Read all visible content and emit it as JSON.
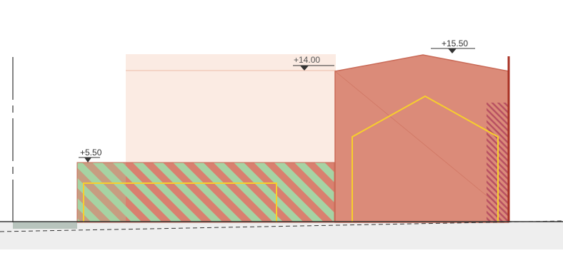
{
  "elevations": {
    "low": "+5.50",
    "mid": "+14.00",
    "high": "+15.50"
  },
  "colors": {
    "envelope_fill": "#fbebe3",
    "envelope_line": "#f2cdbd",
    "building_fill": "#db8b79",
    "building_stroke": "#c96a57",
    "hatch_red": "#d9806f",
    "hatch_green": "#a6d3a4",
    "yellow_outline": "#f7cf2c",
    "ground_fill": "#eeeeee",
    "dark_red_edge": "#a83224",
    "marker": "#333333"
  }
}
